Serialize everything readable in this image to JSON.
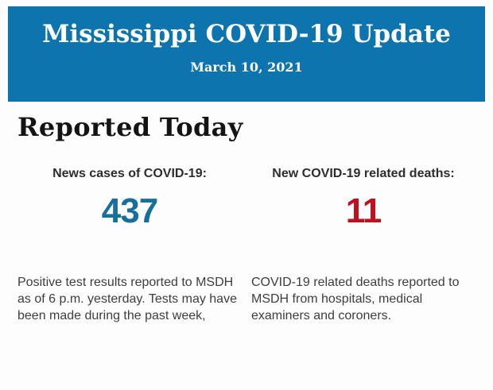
{
  "banner": {
    "title": "Mississippi COVID-19 Update",
    "date": "March 10, 2021",
    "background": "#0e74ad",
    "text_color": "#ffffff"
  },
  "section": {
    "heading": "Reported Today"
  },
  "stats": {
    "cases": {
      "label": "News cases of COVID-19:",
      "value": "437",
      "value_color": "#17709b",
      "description": "Positive test results reported to MSDH as of 6 p.m. yesterday. Tests may have been made during the past week,"
    },
    "deaths": {
      "label": "New COVID-19 related deaths:",
      "value": "11",
      "value_color": "#bf101f",
      "description": "COVID-19 related deaths reported to MSDH from hospitals, medical examiners and coroners."
    }
  }
}
